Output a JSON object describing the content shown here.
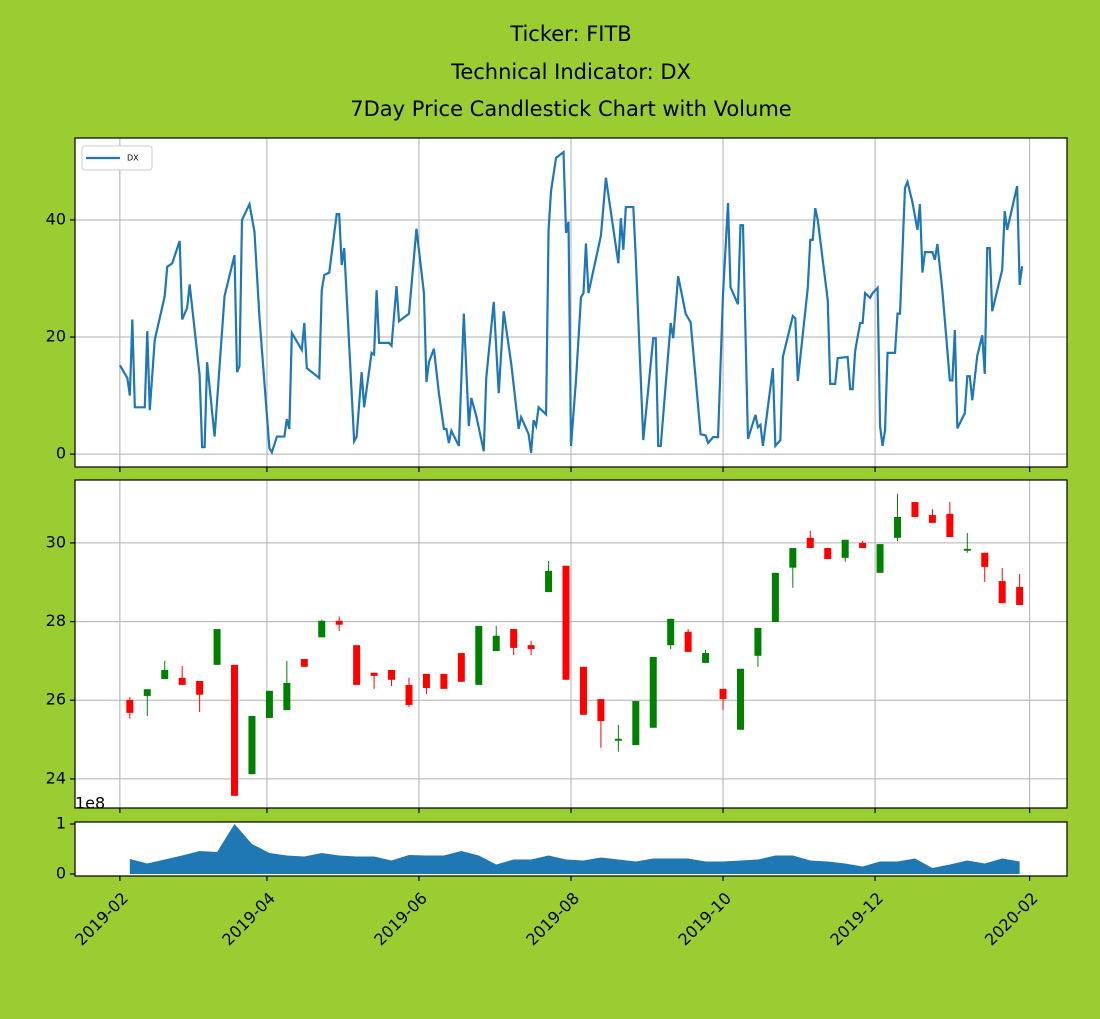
{
  "chart_data": [
    {
      "type": "line",
      "title": [
        "Ticker: FITB",
        "Technical Indicator: DX",
        "7Day Price Candlestick Chart with Volume"
      ],
      "x": [
        "2019-02-01",
        "2019-02-04",
        "2019-02-05",
        "2019-02-06",
        "2019-02-07",
        "2019-02-11",
        "2019-02-12",
        "2019-02-13",
        "2019-02-15",
        "2019-02-19",
        "2019-02-20",
        "2019-02-22",
        "2019-02-25",
        "2019-02-26",
        "2019-02-28",
        "2019-03-01",
        "2019-03-05",
        "2019-03-06",
        "2019-03-07",
        "2019-03-08",
        "2019-03-11",
        "2019-03-15",
        "2019-03-19",
        "2019-03-20",
        "2019-03-21",
        "2019-03-22",
        "2019-03-25",
        "2019-03-27",
        "2019-03-29",
        "2019-04-02",
        "2019-04-03",
        "2019-04-05",
        "2019-04-08",
        "2019-04-09",
        "2019-04-10",
        "2019-04-11",
        "2019-04-15",
        "2019-04-16",
        "2019-04-17",
        "2019-04-22",
        "2019-04-23",
        "2019-04-24",
        "2019-04-26",
        "2019-04-29",
        "2019-04-30",
        "2019-05-01",
        "2019-05-02",
        "2019-05-06",
        "2019-05-07",
        "2019-05-09",
        "2019-05-10",
        "2019-05-13",
        "2019-05-14",
        "2019-05-15",
        "2019-05-16",
        "2019-05-20",
        "2019-05-21",
        "2019-05-23",
        "2019-05-24",
        "2019-05-28",
        "2019-05-31",
        "2019-06-03",
        "2019-06-04",
        "2019-06-05",
        "2019-06-07",
        "2019-06-09",
        "2019-06-11",
        "2019-06-12",
        "2019-06-13",
        "2019-06-14",
        "2019-06-17",
        "2019-06-19",
        "2019-06-21",
        "2019-06-22",
        "2019-06-24",
        "2019-06-27",
        "2019-06-28",
        "2019-07-01",
        "2019-07-03",
        "2019-07-05",
        "2019-07-08",
        "2019-07-11",
        "2019-07-12",
        "2019-07-15",
        "2019-07-16",
        "2019-07-17",
        "2019-07-18",
        "2019-07-19",
        "2019-07-22",
        "2019-07-23",
        "2019-07-24",
        "2019-07-26",
        "2019-07-29",
        "2019-07-30",
        "2019-07-31",
        "2019-08-01",
        "2019-08-03",
        "2019-08-05",
        "2019-08-06",
        "2019-08-07",
        "2019-08-08",
        "2019-08-13",
        "2019-08-15",
        "2019-08-20",
        "2019-08-21",
        "2019-08-22",
        "2019-08-23",
        "2019-08-26",
        "2019-08-27",
        "2019-08-30",
        "2019-09-03",
        "2019-09-04",
        "2019-09-05",
        "2019-09-06",
        "2019-09-10",
        "2019-09-11",
        "2019-09-13",
        "2019-09-16",
        "2019-09-18",
        "2019-09-22",
        "2019-09-24",
        "2019-09-25",
        "2019-09-27",
        "2019-09-29",
        "2019-10-01",
        "2019-10-03",
        "2019-10-04",
        "2019-10-07",
        "2019-10-08",
        "2019-10-09",
        "2019-10-11",
        "2019-10-14",
        "2019-10-15",
        "2019-10-16",
        "2019-10-17",
        "2019-10-21",
        "2019-10-22",
        "2019-10-24",
        "2019-10-25",
        "2019-10-29",
        "2019-10-30",
        "2019-10-31",
        "2019-11-04",
        "2019-11-05",
        "2019-11-06",
        "2019-11-07",
        "2019-11-08",
        "2019-11-12",
        "2019-11-13",
        "2019-11-15",
        "2019-11-16",
        "2019-11-20",
        "2019-11-21",
        "2019-11-22",
        "2019-11-23",
        "2019-11-25",
        "2019-11-26",
        "2019-11-27",
        "2019-11-29",
        "2019-11-30",
        "2019-12-02",
        "2019-12-03",
        "2019-12-04",
        "2019-12-05",
        "2019-12-06",
        "2019-12-09",
        "2019-12-10",
        "2019-12-11",
        "2019-12-13",
        "2019-12-14",
        "2019-12-16",
        "2019-12-18",
        "2019-12-19",
        "2019-12-20",
        "2019-12-21",
        "2019-12-24",
        "2019-12-25",
        "2019-12-26",
        "2019-12-28",
        "2019-12-31",
        "2020-01-01",
        "2020-01-02",
        "2020-01-03",
        "2020-01-06",
        "2020-01-07",
        "2020-01-08",
        "2020-01-09",
        "2020-01-11",
        "2020-01-13",
        "2020-01-14",
        "2020-01-15",
        "2020-01-16",
        "2020-01-17",
        "2020-01-21",
        "2020-01-22",
        "2020-01-23",
        "2020-01-27",
        "2020-01-28",
        "2020-01-29"
      ],
      "series": [
        {
          "name": "DX",
          "color": "#1f77b4",
          "values": [
            15.2,
            13,
            10,
            23,
            8,
            8,
            21,
            7.5,
            19.5,
            27,
            32,
            32.6,
            36.4,
            23,
            25,
            29,
            13.5,
            1.2,
            1.2,
            15.7,
            3,
            27,
            34,
            14,
            15,
            40,
            42.7,
            38,
            23.4,
            1,
            0.3,
            3,
            3,
            6,
            4.3,
            20.7,
            17.8,
            22.4,
            14.7,
            13,
            28,
            30.6,
            31,
            41,
            41,
            32.3,
            35.2,
            2.2,
            3,
            14,
            8,
            17.3,
            17,
            28,
            19,
            19,
            18.5,
            28.7,
            22.7,
            24,
            38.5,
            27.5,
            12.3,
            15.7,
            18,
            10.4,
            4.3,
            4.3,
            1.9,
            4,
            1.4,
            24,
            4.8,
            9.6,
            6.5,
            0.5,
            13,
            26,
            10.4,
            24.4,
            15.5,
            4.3,
            6.3,
            3.4,
            0.2,
            5.8,
            4.8,
            8,
            6.8,
            38.3,
            45,
            50.6,
            51.6,
            37.8,
            39.7,
            1.4,
            12.6,
            26.8,
            27.5,
            36,
            27.5,
            37.3,
            47.2,
            32.6,
            40.3,
            34.9,
            42.2,
            42.2,
            33.5,
            2.4,
            19.8,
            19.8,
            1.4,
            1.4,
            22.4,
            19.8,
            30.4,
            24,
            22.5,
            3.4,
            3.2,
            1.9,
            2.9,
            2.9,
            27.4,
            42.9,
            28.5,
            25.6,
            39.1,
            39.1,
            2.6,
            6.7,
            4.6,
            5,
            1.4,
            14.7,
            1.4,
            2.4,
            16.6,
            23.6,
            23.2,
            12.5,
            28.4,
            36.6,
            36.6,
            42,
            40,
            26.3,
            12,
            12,
            16.4,
            16.6,
            11.1,
            11.1,
            17.6,
            22.4,
            22.4,
            27.5,
            26.7,
            27.5,
            28.4,
            4.8,
            1.4,
            4.1,
            17.3,
            17.3,
            24,
            24,
            45.5,
            46.5,
            43,
            38.3,
            42.7,
            31,
            34.5,
            34.5,
            33.2,
            35.9,
            27.9,
            12.6,
            12.6,
            21.2,
            4.4,
            7,
            13.3,
            13.3,
            9.2,
            16.8,
            20.3,
            13.7,
            35.2,
            35.2,
            24.4,
            31.5,
            41.5,
            38.3,
            45.8,
            28.9,
            32.1
          ]
        }
      ],
      "xlim": [
        "2019-01-14",
        "2020-02-16"
      ],
      "xticks": [
        "2019-02-01",
        "2019-04-01",
        "2019-06-01",
        "2019-08-01",
        "2019-10-01",
        "2019-12-01",
        "2020-02-01"
      ],
      "ylim": [
        -2.2,
        54
      ],
      "yticks": [
        0,
        20,
        40
      ],
      "grid": true,
      "legend": "upper left"
    },
    {
      "type": "candlestick",
      "x": [
        "2019-02-05",
        "2019-02-12",
        "2019-02-19",
        "2019-02-26",
        "2019-03-05",
        "2019-03-12",
        "2019-03-19",
        "2019-03-26",
        "2019-04-02",
        "2019-04-09",
        "2019-04-16",
        "2019-04-23",
        "2019-04-30",
        "2019-05-07",
        "2019-05-14",
        "2019-05-21",
        "2019-05-28",
        "2019-06-04",
        "2019-06-11",
        "2019-06-18",
        "2019-06-25",
        "2019-07-02",
        "2019-07-09",
        "2019-07-16",
        "2019-07-23",
        "2019-07-30",
        "2019-08-06",
        "2019-08-13",
        "2019-08-20",
        "2019-08-27",
        "2019-09-03",
        "2019-09-10",
        "2019-09-17",
        "2019-09-24",
        "2019-10-01",
        "2019-10-08",
        "2019-10-15",
        "2019-10-22",
        "2019-10-29",
        "2019-11-05",
        "2019-11-12",
        "2019-11-19",
        "2019-11-26",
        "2019-12-03",
        "2019-12-10",
        "2019-12-17",
        "2019-12-24",
        "2019-12-31",
        "2020-01-07",
        "2020-01-14",
        "2020-01-21",
        "2020-01-28"
      ],
      "open": [
        26.01,
        26.11,
        26.54,
        26.57,
        26.49,
        26.9,
        26.9,
        24.12,
        25.55,
        25.75,
        27.05,
        27.6,
        28.02,
        27.4,
        26.7,
        26.77,
        26.39,
        26.67,
        26.67,
        27.2,
        26.39,
        27.25,
        27.81,
        27.4,
        28.75,
        29.42,
        26.85,
        26.03,
        24.97,
        24.86,
        25.3,
        27.4,
        27.74,
        26.95,
        26.29,
        25.25,
        27.13,
        27.99,
        29.37,
        30.13,
        29.87,
        29.62,
        30.0,
        29.24,
        30.13,
        31.04,
        30.71,
        30.74,
        29.8,
        29.75,
        29.03,
        28.88
      ],
      "high": [
        26.08,
        26.28,
        27.0,
        26.87,
        26.49,
        27.81,
        26.9,
        25.6,
        26.24,
        27.0,
        27.05,
        28.05,
        28.13,
        27.4,
        26.7,
        26.77,
        26.57,
        26.67,
        26.67,
        27.2,
        27.89,
        27.89,
        27.81,
        27.51,
        29.54,
        29.42,
        26.85,
        26.03,
        25.37,
        25.98,
        27.1,
        28.07,
        27.81,
        27.28,
        26.29,
        26.8,
        27.84,
        29.24,
        29.87,
        30.31,
        29.87,
        30.08,
        30.05,
        29.97,
        31.25,
        31.04,
        30.86,
        31.04,
        30.25,
        29.75,
        29.36,
        29.21
      ],
      "low": [
        25.53,
        25.6,
        26.54,
        26.39,
        25.7,
        26.9,
        23.57,
        24.12,
        25.55,
        25.75,
        26.85,
        27.6,
        27.76,
        26.39,
        26.29,
        26.36,
        25.83,
        26.16,
        26.29,
        26.47,
        26.39,
        27.25,
        27.15,
        27.15,
        28.75,
        26.52,
        25.63,
        24.79,
        24.69,
        24.86,
        25.3,
        27.3,
        27.23,
        26.95,
        25.75,
        25.25,
        26.85,
        27.99,
        28.86,
        29.87,
        29.59,
        29.52,
        29.87,
        29.24,
        30.05,
        30.66,
        30.51,
        30.15,
        29.75,
        29.01,
        28.47,
        28.42
      ],
      "close": [
        25.68,
        26.28,
        26.77,
        26.39,
        26.14,
        27.81,
        23.57,
        25.6,
        26.24,
        26.44,
        26.85,
        28.02,
        27.92,
        26.39,
        26.62,
        26.52,
        25.88,
        26.31,
        26.29,
        26.47,
        27.89,
        27.64,
        27.33,
        27.3,
        29.29,
        26.52,
        25.63,
        25.47,
        25.02,
        25.98,
        27.1,
        28.07,
        27.23,
        27.2,
        26.03,
        26.8,
        27.84,
        29.24,
        29.87,
        29.87,
        29.59,
        30.08,
        29.87,
        29.97,
        30.66,
        30.66,
        30.51,
        30.15,
        29.85,
        29.39,
        28.47,
        28.42
      ],
      "up_color": "green",
      "down_color": "red",
      "xlim": [
        "2019-01-14",
        "2020-02-16"
      ],
      "xticks": [
        "2019-02-01",
        "2019-04-01",
        "2019-06-01",
        "2019-08-01",
        "2019-10-01",
        "2019-12-01",
        "2020-02-01"
      ],
      "ylim": [
        23.26,
        31.6
      ],
      "yticks": [
        24,
        26,
        28,
        30
      ],
      "grid": true
    },
    {
      "type": "area",
      "x": [
        "2019-02-05",
        "2019-02-12",
        "2019-02-19",
        "2019-02-26",
        "2019-03-05",
        "2019-03-12",
        "2019-03-19",
        "2019-03-26",
        "2019-04-02",
        "2019-04-09",
        "2019-04-16",
        "2019-04-23",
        "2019-04-30",
        "2019-05-07",
        "2019-05-14",
        "2019-05-21",
        "2019-05-28",
        "2019-06-04",
        "2019-06-11",
        "2019-06-18",
        "2019-06-25",
        "2019-07-02",
        "2019-07-09",
        "2019-07-16",
        "2019-07-23",
        "2019-07-30",
        "2019-08-06",
        "2019-08-13",
        "2019-08-20",
        "2019-08-27",
        "2019-09-03",
        "2019-09-10",
        "2019-09-17",
        "2019-09-24",
        "2019-10-01",
        "2019-10-08",
        "2019-10-15",
        "2019-10-22",
        "2019-10-29",
        "2019-11-05",
        "2019-11-12",
        "2019-11-19",
        "2019-11-26",
        "2019-12-03",
        "2019-12-10",
        "2019-12-17",
        "2019-12-24",
        "2019-12-31",
        "2020-01-07",
        "2020-01-14",
        "2020-01-21",
        "2020-01-28"
      ],
      "values": [
        0.3,
        0.21,
        0.29,
        0.37,
        0.46,
        0.44,
        1.0,
        0.6,
        0.42,
        0.37,
        0.35,
        0.42,
        0.37,
        0.35,
        0.35,
        0.27,
        0.38,
        0.37,
        0.37,
        0.46,
        0.37,
        0.19,
        0.29,
        0.29,
        0.37,
        0.29,
        0.27,
        0.33,
        0.29,
        0.25,
        0.31,
        0.31,
        0.31,
        0.25,
        0.25,
        0.27,
        0.29,
        0.37,
        0.37,
        0.27,
        0.25,
        0.21,
        0.15,
        0.25,
        0.25,
        0.31,
        0.12,
        0.19,
        0.27,
        0.21,
        0.31,
        0.25
      ],
      "color": "#1f77b4",
      "y_offset_text": "1e8",
      "xlim": [
        "2019-01-14",
        "2020-02-16"
      ],
      "xticks": [
        {
          "value": "2019-02-01",
          "label": "2019-02"
        },
        {
          "value": "2019-04-01",
          "label": "2019-04"
        },
        {
          "value": "2019-06-01",
          "label": "2019-06"
        },
        {
          "value": "2019-08-01",
          "label": "2019-08"
        },
        {
          "value": "2019-10-01",
          "label": "2019-10"
        },
        {
          "value": "2019-12-01",
          "label": "2019-12"
        },
        {
          "value": "2020-02-01",
          "label": "2020-02"
        }
      ],
      "ylim": [
        -0.04,
        1.04
      ],
      "yticks": [
        0,
        1
      ],
      "grid": false
    }
  ]
}
